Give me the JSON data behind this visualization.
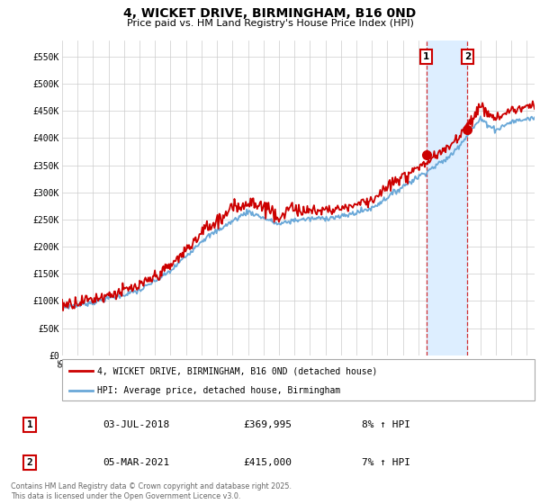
{
  "title": "4, WICKET DRIVE, BIRMINGHAM, B16 0ND",
  "subtitle": "Price paid vs. HM Land Registry's House Price Index (HPI)",
  "ylabel_ticks": [
    "£0",
    "£50K",
    "£100K",
    "£150K",
    "£200K",
    "£250K",
    "£300K",
    "£350K",
    "£400K",
    "£450K",
    "£500K",
    "£550K"
  ],
  "ylabel_values": [
    0,
    50000,
    100000,
    150000,
    200000,
    250000,
    300000,
    350000,
    400000,
    450000,
    500000,
    550000
  ],
  "hpi_color": "#6aa8d8",
  "price_color": "#cc0000",
  "sale1_date": "03-JUL-2018",
  "sale1_price": 369995,
  "sale1_x": 2018.5,
  "sale1_pct": "8%",
  "sale2_date": "05-MAR-2021",
  "sale2_price": 415000,
  "sale2_x": 2021.17,
  "sale2_pct": "7%",
  "shade_color": "#ddeeff",
  "grid_color": "#cccccc",
  "plot_bg_color": "#ffffff",
  "footnote": "Contains HM Land Registry data © Crown copyright and database right 2025.\nThis data is licensed under the Open Government Licence v3.0.",
  "legend_line1": "4, WICKET DRIVE, BIRMINGHAM, B16 0ND (detached house)",
  "legend_line2": "HPI: Average price, detached house, Birmingham"
}
